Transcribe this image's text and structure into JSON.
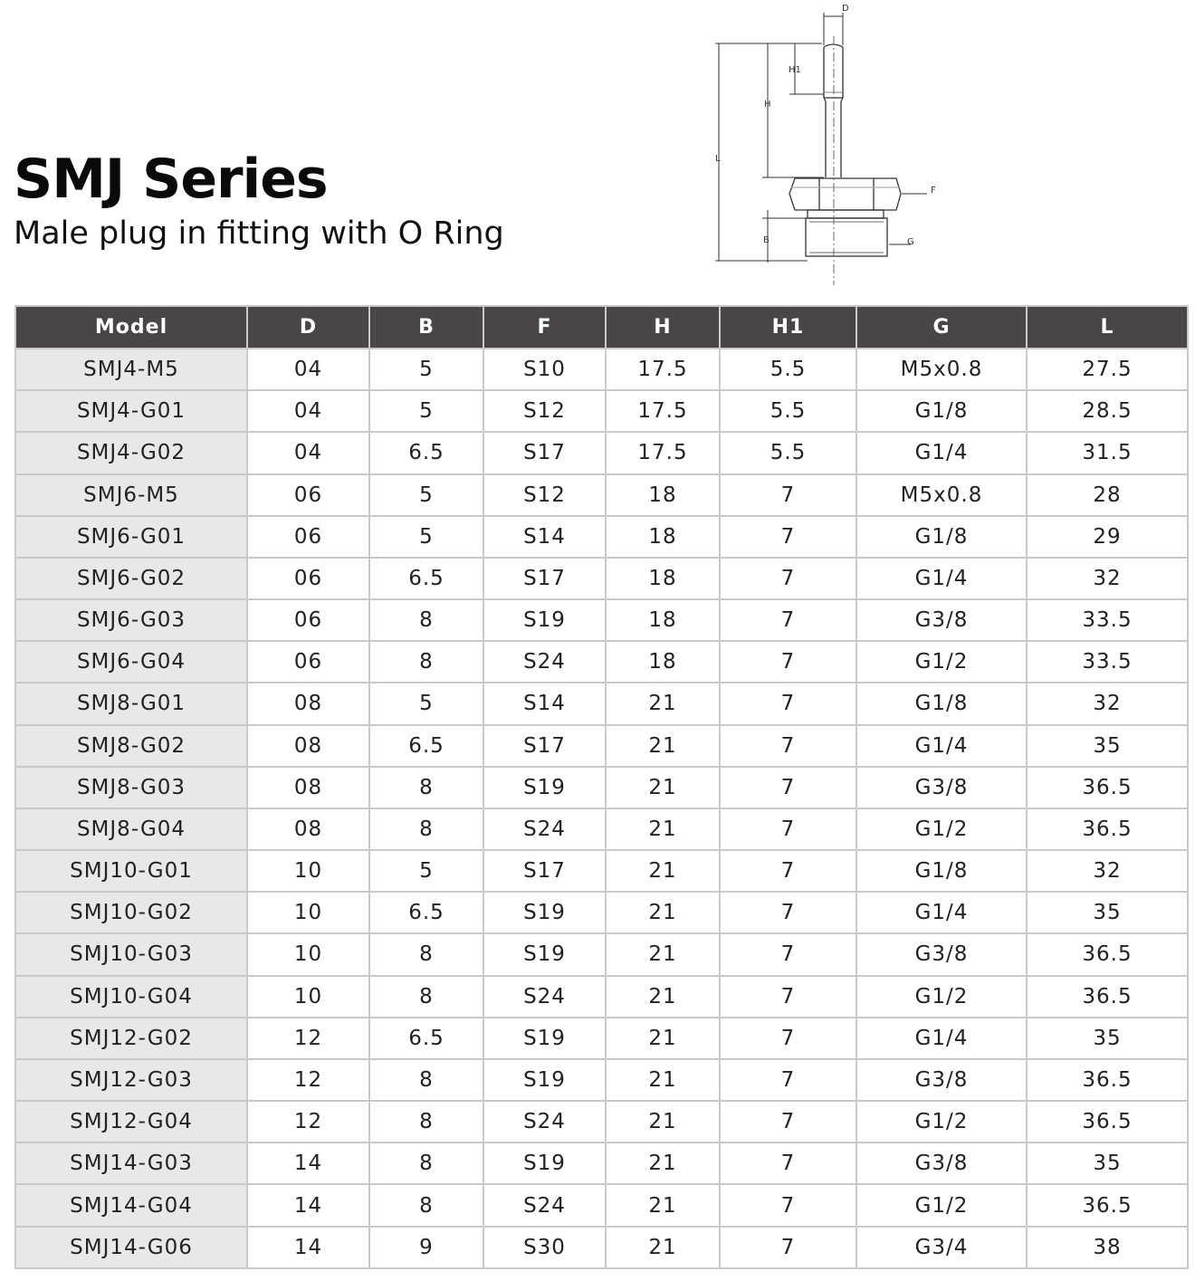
{
  "header": {
    "title": "SMJ Series",
    "subtitle": "Male plug in fitting with O Ring"
  },
  "diagram": {
    "labels": {
      "D": "D",
      "H1": "H1",
      "H": "H",
      "L": "L",
      "F": "F",
      "B": "B",
      "G": "G"
    }
  },
  "table": {
    "columns": [
      "Model",
      "D",
      "B",
      "F",
      "H",
      "H1",
      "G",
      "L"
    ],
    "rows": [
      [
        "SMJ4-M5",
        "04",
        "5",
        "S10",
        "17.5",
        "5.5",
        "M5x0.8",
        "27.5"
      ],
      [
        "SMJ4-G01",
        "04",
        "5",
        "S12",
        "17.5",
        "5.5",
        "G1/8",
        "28.5"
      ],
      [
        "SMJ4-G02",
        "04",
        "6.5",
        "S17",
        "17.5",
        "5.5",
        "G1/4",
        "31.5"
      ],
      [
        "SMJ6-M5",
        "06",
        "5",
        "S12",
        "18",
        "7",
        "M5x0.8",
        "28"
      ],
      [
        "SMJ6-G01",
        "06",
        "5",
        "S14",
        "18",
        "7",
        "G1/8",
        "29"
      ],
      [
        "SMJ6-G02",
        "06",
        "6.5",
        "S17",
        "18",
        "7",
        "G1/4",
        "32"
      ],
      [
        "SMJ6-G03",
        "06",
        "8",
        "S19",
        "18",
        "7",
        "G3/8",
        "33.5"
      ],
      [
        "SMJ6-G04",
        "06",
        "8",
        "S24",
        "18",
        "7",
        "G1/2",
        "33.5"
      ],
      [
        "SMJ8-G01",
        "08",
        "5",
        "S14",
        "21",
        "7",
        "G1/8",
        "32"
      ],
      [
        "SMJ8-G02",
        "08",
        "6.5",
        "S17",
        "21",
        "7",
        "G1/4",
        "35"
      ],
      [
        "SMJ8-G03",
        "08",
        "8",
        "S19",
        "21",
        "7",
        "G3/8",
        "36.5"
      ],
      [
        "SMJ8-G04",
        "08",
        "8",
        "S24",
        "21",
        "7",
        "G1/2",
        "36.5"
      ],
      [
        "SMJ10-G01",
        "10",
        "5",
        "S17",
        "21",
        "7",
        "G1/8",
        "32"
      ],
      [
        "SMJ10-G02",
        "10",
        "6.5",
        "S19",
        "21",
        "7",
        "G1/4",
        "35"
      ],
      [
        "SMJ10-G03",
        "10",
        "8",
        "S19",
        "21",
        "7",
        "G3/8",
        "36.5"
      ],
      [
        "SMJ10-G04",
        "10",
        "8",
        "S24",
        "21",
        "7",
        "G1/2",
        "36.5"
      ],
      [
        "SMJ12-G02",
        "12",
        "6.5",
        "S19",
        "21",
        "7",
        "G1/4",
        "35"
      ],
      [
        "SMJ12-G03",
        "12",
        "8",
        "S19",
        "21",
        "7",
        "G3/8",
        "36.5"
      ],
      [
        "SMJ12-G04",
        "12",
        "8",
        "S24",
        "21",
        "7",
        "G1/2",
        "36.5"
      ],
      [
        "SMJ14-G03",
        "14",
        "8",
        "S19",
        "21",
        "7",
        "G3/8",
        "35"
      ],
      [
        "SMJ14-G04",
        "14",
        "8",
        "S24",
        "21",
        "7",
        "G1/2",
        "36.5"
      ],
      [
        "SMJ14-G06",
        "14",
        "9",
        "S30",
        "21",
        "7",
        "G3/4",
        "38"
      ]
    ]
  }
}
